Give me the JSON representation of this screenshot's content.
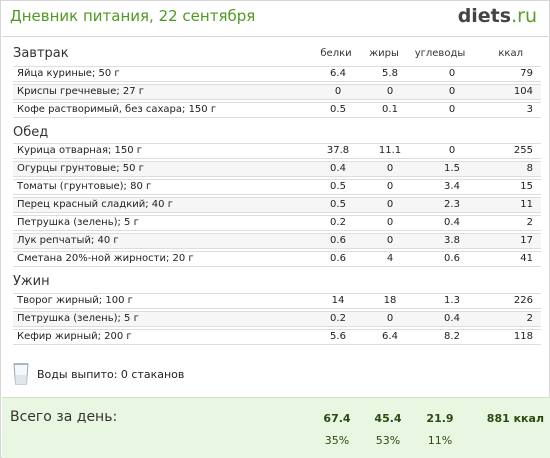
{
  "header": {
    "title": "Дневник питания, 22 сентября",
    "logo_main": "diets",
    "logo_tld": ".ru"
  },
  "columns": {
    "protein": "белки",
    "fat": "жиры",
    "carbs": "углеводы",
    "kcal": "ккал"
  },
  "sections": [
    {
      "title": "Завтрак",
      "items": [
        {
          "name": "Яйца куриные; 50 г",
          "protein": "6.4",
          "fat": "5.8",
          "carbs": "0",
          "kcal": "79"
        },
        {
          "name": "Криспы гречневые; 27 г",
          "protein": "0",
          "fat": "0",
          "carbs": "0",
          "kcal": "104"
        },
        {
          "name": "Кофе растворимый, без сахара; 150 г",
          "protein": "0.5",
          "fat": "0.1",
          "carbs": "0",
          "kcal": "3"
        }
      ]
    },
    {
      "title": "Обед",
      "items": [
        {
          "name": "Курица отварная; 150 г",
          "protein": "37.8",
          "fat": "11.1",
          "carbs": "0",
          "kcal": "255"
        },
        {
          "name": "Огурцы грунтовые; 50 г",
          "protein": "0.4",
          "fat": "0",
          "carbs": "1.5",
          "kcal": "8"
        },
        {
          "name": "Томаты (грунтовые); 80 г",
          "protein": "0.5",
          "fat": "0",
          "carbs": "3.4",
          "kcal": "15"
        },
        {
          "name": "Перец красный сладкий; 40 г",
          "protein": "0.5",
          "fat": "0",
          "carbs": "2.3",
          "kcal": "11"
        },
        {
          "name": "Петрушка (зелень); 5 г",
          "protein": "0.2",
          "fat": "0",
          "carbs": "0.4",
          "kcal": "2"
        },
        {
          "name": "Лук репчатый; 40 г",
          "protein": "0.6",
          "fat": "0",
          "carbs": "3.8",
          "kcal": "17"
        },
        {
          "name": "Сметана 20%-ной жирности; 20 г",
          "protein": "0.6",
          "fat": "4",
          "carbs": "0.6",
          "kcal": "41"
        }
      ]
    },
    {
      "title": "Ужин",
      "items": [
        {
          "name": "Творог жирный; 100 г",
          "protein": "14",
          "fat": "18",
          "carbs": "1.3",
          "kcal": "226"
        },
        {
          "name": "Петрушка (зелень); 5 г",
          "protein": "0.2",
          "fat": "0",
          "carbs": "0.4",
          "kcal": "2"
        },
        {
          "name": "Кефир жирный; 200 г",
          "protein": "5.6",
          "fat": "6.4",
          "carbs": "8.2",
          "kcal": "118"
        }
      ]
    }
  ],
  "water": {
    "icon": "glass-icon",
    "text": "Воды выпито: 0 стаканов"
  },
  "totals": {
    "label": "Всего за день:",
    "protein": "67.4",
    "fat": "45.4",
    "carbs": "21.9",
    "kcal": "881 ккал",
    "protein_pct": "35%",
    "fat_pct": "53%",
    "carbs_pct": "11%"
  },
  "colors": {
    "title_green": "#4f9a23",
    "totals_bg": "#e9f7e2"
  }
}
